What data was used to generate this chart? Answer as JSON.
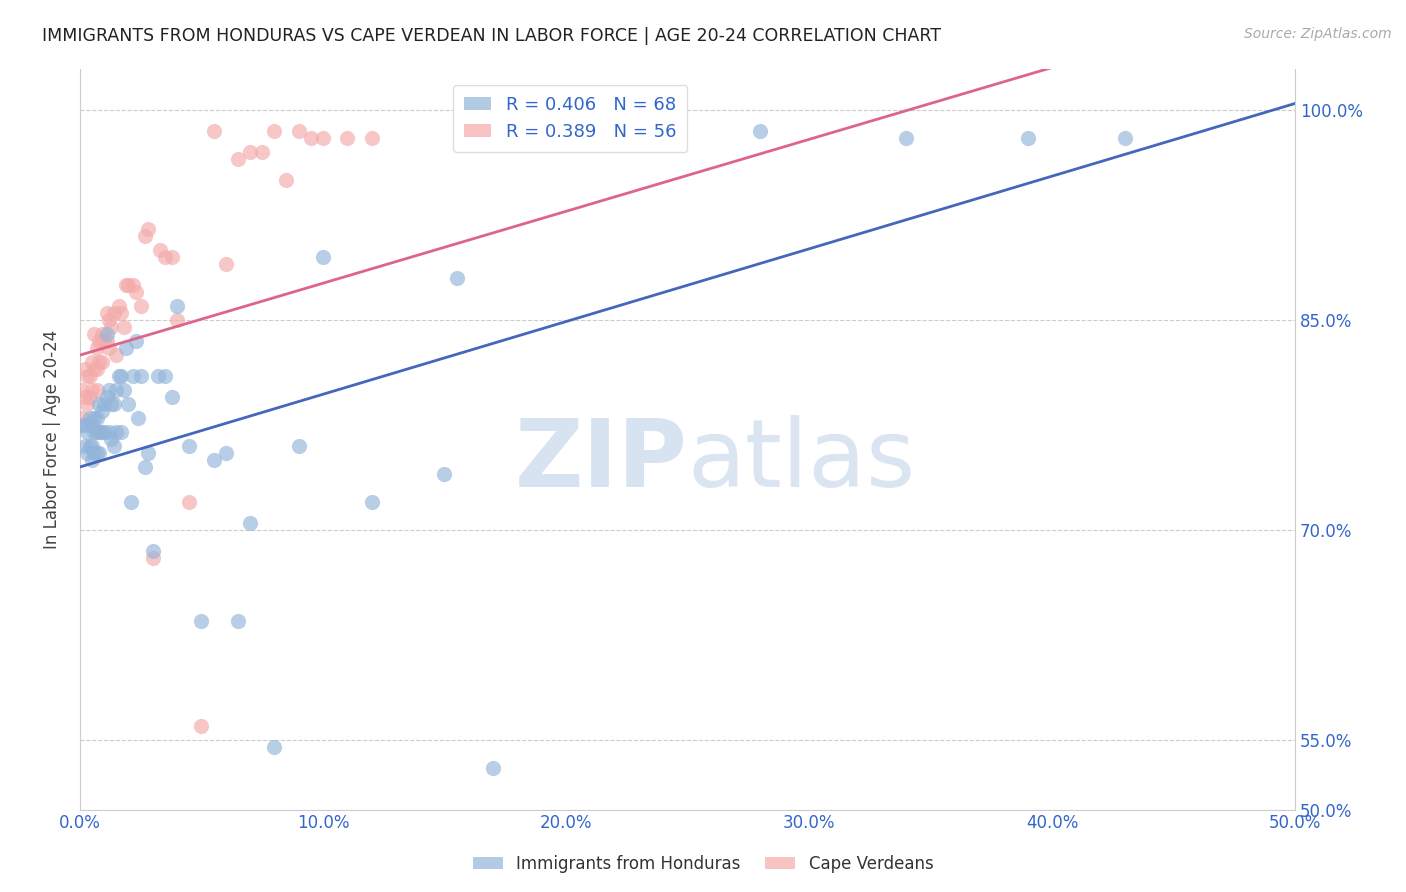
{
  "title": "IMMIGRANTS FROM HONDURAS VS CAPE VERDEAN IN LABOR FORCE | AGE 20-24 CORRELATION CHART",
  "source_text": "Source: ZipAtlas.com",
  "ylabel": "In Labor Force | Age 20-24",
  "xlim": [
    0.0,
    0.5
  ],
  "ylim": [
    0.5,
    1.03
  ],
  "xtick_labels": [
    "0.0%",
    "10.0%",
    "20.0%",
    "30.0%",
    "40.0%",
    "50.0%"
  ],
  "xtick_values": [
    0.0,
    0.1,
    0.2,
    0.3,
    0.4,
    0.5
  ],
  "ytick_labels": [
    "50.0%",
    "55.0%",
    "70.0%",
    "85.0%",
    "100.0%"
  ],
  "ytick_values": [
    0.5,
    0.55,
    0.7,
    0.85,
    1.0
  ],
  "legend_r_blue": "R = 0.406",
  "legend_n_blue": "N = 68",
  "legend_r_pink": "R = 0.389",
  "legend_n_pink": "N = 56",
  "blue_color": "#92B4D9",
  "pink_color": "#F4AAAA",
  "blue_line_color": "#4466BB",
  "pink_line_color": "#DD6688",
  "blue_line": [
    0.0,
    0.745,
    0.5,
    1.005
  ],
  "pink_line": [
    0.0,
    0.825,
    0.35,
    1.005
  ],
  "blue_scatter_x": [
    0.001,
    0.002,
    0.002,
    0.003,
    0.003,
    0.004,
    0.004,
    0.005,
    0.005,
    0.005,
    0.006,
    0.006,
    0.006,
    0.007,
    0.007,
    0.007,
    0.008,
    0.008,
    0.008,
    0.009,
    0.009,
    0.01,
    0.01,
    0.011,
    0.011,
    0.012,
    0.012,
    0.013,
    0.013,
    0.014,
    0.014,
    0.015,
    0.015,
    0.016,
    0.017,
    0.017,
    0.018,
    0.019,
    0.02,
    0.021,
    0.022,
    0.023,
    0.024,
    0.025,
    0.027,
    0.028,
    0.03,
    0.032,
    0.035,
    0.038,
    0.04,
    0.045,
    0.05,
    0.055,
    0.06,
    0.065,
    0.07,
    0.08,
    0.09,
    0.1,
    0.12,
    0.15,
    0.155,
    0.17,
    0.28,
    0.34,
    0.39,
    0.43
  ],
  "blue_scatter_y": [
    0.775,
    0.775,
    0.76,
    0.77,
    0.755,
    0.78,
    0.76,
    0.775,
    0.76,
    0.75,
    0.78,
    0.77,
    0.755,
    0.78,
    0.77,
    0.755,
    0.79,
    0.77,
    0.755,
    0.785,
    0.77,
    0.79,
    0.77,
    0.84,
    0.795,
    0.8,
    0.77,
    0.79,
    0.765,
    0.79,
    0.76,
    0.8,
    0.77,
    0.81,
    0.81,
    0.77,
    0.8,
    0.83,
    0.79,
    0.72,
    0.81,
    0.835,
    0.78,
    0.81,
    0.745,
    0.755,
    0.685,
    0.81,
    0.81,
    0.795,
    0.86,
    0.76,
    0.635,
    0.75,
    0.755,
    0.635,
    0.705,
    0.545,
    0.76,
    0.895,
    0.72,
    0.74,
    0.88,
    0.53,
    0.985,
    0.98,
    0.98,
    0.98
  ],
  "pink_scatter_x": [
    0.001,
    0.001,
    0.002,
    0.002,
    0.003,
    0.003,
    0.004,
    0.004,
    0.005,
    0.005,
    0.006,
    0.006,
    0.007,
    0.007,
    0.007,
    0.008,
    0.008,
    0.009,
    0.009,
    0.01,
    0.011,
    0.011,
    0.012,
    0.012,
    0.013,
    0.014,
    0.015,
    0.016,
    0.017,
    0.018,
    0.019,
    0.02,
    0.022,
    0.023,
    0.025,
    0.027,
    0.028,
    0.03,
    0.033,
    0.035,
    0.038,
    0.04,
    0.045,
    0.05,
    0.055,
    0.06,
    0.065,
    0.07,
    0.075,
    0.08,
    0.085,
    0.09,
    0.095,
    0.1,
    0.11,
    0.12
  ],
  "pink_scatter_y": [
    0.8,
    0.78,
    0.815,
    0.795,
    0.81,
    0.79,
    0.81,
    0.795,
    0.82,
    0.8,
    0.84,
    0.815,
    0.83,
    0.815,
    0.8,
    0.835,
    0.82,
    0.84,
    0.82,
    0.835,
    0.855,
    0.835,
    0.85,
    0.83,
    0.845,
    0.855,
    0.825,
    0.86,
    0.855,
    0.845,
    0.875,
    0.875,
    0.875,
    0.87,
    0.86,
    0.91,
    0.915,
    0.68,
    0.9,
    0.895,
    0.895,
    0.85,
    0.72,
    0.56,
    0.985,
    0.89,
    0.965,
    0.97,
    0.97,
    0.985,
    0.95,
    0.985,
    0.98,
    0.98,
    0.98,
    0.98
  ]
}
